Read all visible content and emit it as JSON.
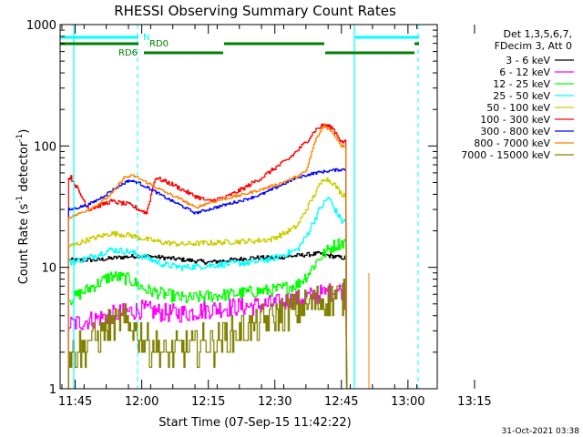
{
  "chart_data": {
    "type": "line",
    "title": "RHESSI Observing Summary Count Rates",
    "xlabel": "Start Time (07-Sep-15 11:42:22)",
    "ylabel_main": "Count Rate (s",
    "ylabel_exp1": "-1",
    "ylabel_mid": " detector",
    "ylabel_exp2": "-1",
    "ylabel_end": ")",
    "footer_date": "31-Oct-2021 03:38",
    "x_ticks": [
      "11:45",
      "12:00",
      "12:15",
      "12:30",
      "12:45",
      "13:00",
      "13:15"
    ],
    "y_ticks": [
      "1",
      "10",
      "100",
      "1000"
    ],
    "xlim_minutes": [
      -3.4,
      81.6
    ],
    "ylim": [
      1,
      1000
    ],
    "y_scale": "log",
    "legend": {
      "header_line1": "Det 1,3,5,6,7,",
      "header_line2": "FDecim 3, Att 0",
      "placement": "right"
    },
    "series": [
      {
        "name": "3 - 6 keV",
        "color": "#000000",
        "points": [
          [
            5,
            11.5
          ],
          [
            9,
            12
          ],
          [
            15,
            12.5
          ],
          [
            20,
            12
          ],
          [
            25,
            11.5
          ],
          [
            30,
            11
          ],
          [
            35,
            11.5
          ],
          [
            40,
            12
          ],
          [
            45,
            12
          ],
          [
            50,
            12.5
          ],
          [
            55,
            13
          ],
          [
            57,
            12.5
          ],
          [
            60,
            12
          ]
        ]
      },
      {
        "name": "6 - 12 keV",
        "color": "#ff00ff",
        "points": [
          [
            -1,
            3.4
          ],
          [
            5,
            3.8
          ],
          [
            10,
            4.2
          ],
          [
            15,
            4.5
          ],
          [
            20,
            4.2
          ],
          [
            25,
            4.2
          ],
          [
            30,
            4.5
          ],
          [
            35,
            4.7
          ],
          [
            40,
            4.8
          ],
          [
            45,
            5
          ],
          [
            50,
            5.5
          ],
          [
            55,
            6
          ],
          [
            60,
            6.5
          ]
        ]
      },
      {
        "name": "12 - 25 keV",
        "color": "#00ff00",
        "points": [
          [
            -1,
            5.5
          ],
          [
            4,
            7
          ],
          [
            8,
            8.5
          ],
          [
            12,
            8
          ],
          [
            16,
            6.5
          ],
          [
            20,
            6
          ],
          [
            25,
            5.5
          ],
          [
            30,
            5.8
          ],
          [
            35,
            6
          ],
          [
            40,
            6.3
          ],
          [
            45,
            6.5
          ],
          [
            50,
            7.2
          ],
          [
            52,
            8.5
          ],
          [
            55,
            12
          ],
          [
            58,
            15
          ],
          [
            60,
            16
          ]
        ]
      },
      {
        "name": "25 - 50 keV",
        "color": "#00ffff",
        "points": [
          [
            -1,
            11
          ],
          [
            3,
            12
          ],
          [
            8,
            14
          ],
          [
            12,
            13.5
          ],
          [
            16,
            12
          ],
          [
            20,
            10.5
          ],
          [
            24,
            10
          ],
          [
            28,
            10.2
          ],
          [
            32,
            10.5
          ],
          [
            36,
            10.8
          ],
          [
            40,
            11
          ],
          [
            45,
            12
          ],
          [
            50,
            14
          ],
          [
            52,
            18
          ],
          [
            55,
            30
          ],
          [
            57,
            38
          ],
          [
            58,
            32
          ],
          [
            60,
            24
          ]
        ]
      },
      {
        "name": "50 - 100 keV",
        "color": "#cccc00",
        "points": [
          [
            -1,
            15
          ],
          [
            3,
            17
          ],
          [
            8,
            19
          ],
          [
            12,
            18.5
          ],
          [
            16,
            17
          ],
          [
            20,
            16
          ],
          [
            24,
            15.5
          ],
          [
            28,
            15.8
          ],
          [
            32,
            16
          ],
          [
            36,
            16.3
          ],
          [
            40,
            16.5
          ],
          [
            44,
            17
          ],
          [
            47,
            19
          ],
          [
            50,
            22
          ],
          [
            53,
            35
          ],
          [
            56,
            55
          ],
          [
            58,
            50
          ],
          [
            60,
            40
          ]
        ]
      },
      {
        "name": "100 - 300 keV",
        "color": "#ff0000",
        "points": [
          [
            -1,
            55
          ],
          [
            3,
            30
          ],
          [
            8,
            35
          ],
          [
            12,
            33
          ],
          [
            16,
            28
          ],
          [
            18,
            55
          ],
          [
            22,
            48
          ],
          [
            26,
            40
          ],
          [
            30,
            35
          ],
          [
            34,
            38
          ],
          [
            38,
            45
          ],
          [
            42,
            55
          ],
          [
            45,
            66
          ],
          [
            48,
            78
          ],
          [
            52,
            108
          ],
          [
            54,
            135
          ],
          [
            56,
            150
          ],
          [
            58,
            140
          ],
          [
            60,
            108
          ]
        ]
      },
      {
        "name": "300 - 800 keV",
        "color": "#0000ff",
        "points": [
          [
            -1,
            30
          ],
          [
            3,
            33
          ],
          [
            5,
            36
          ],
          [
            9,
            45
          ],
          [
            12,
            52
          ],
          [
            14,
            50
          ],
          [
            17,
            44
          ],
          [
            20,
            38
          ],
          [
            24,
            32
          ],
          [
            27,
            28
          ],
          [
            30,
            30
          ],
          [
            34,
            33
          ],
          [
            38,
            36
          ],
          [
            42,
            40
          ],
          [
            46,
            47
          ],
          [
            50,
            55
          ],
          [
            54,
            60
          ],
          [
            58,
            63
          ],
          [
            60,
            64
          ]
        ]
      },
      {
        "name": "800 - 7000 keV",
        "color": "#ff8000",
        "points": [
          [
            -1,
            26
          ],
          [
            3,
            30
          ],
          [
            5,
            33
          ],
          [
            8,
            40
          ],
          [
            11,
            55
          ],
          [
            13,
            57
          ],
          [
            16,
            50
          ],
          [
            20,
            42
          ],
          [
            24,
            36
          ],
          [
            27,
            31
          ],
          [
            30,
            34
          ],
          [
            34,
            37
          ],
          [
            38,
            40
          ],
          [
            42,
            44
          ],
          [
            46,
            49
          ],
          [
            50,
            56
          ],
          [
            52,
            62
          ],
          [
            54,
            110
          ],
          [
            56,
            148
          ],
          [
            58,
            128
          ],
          [
            60,
            100
          ]
        ]
      },
      {
        "name": "7000 - 15000 keV",
        "color": "#808000",
        "points": [
          [
            -1,
            2
          ],
          [
            2,
            2.3
          ],
          [
            4,
            2.6
          ],
          [
            7,
            3.1
          ],
          [
            10,
            3.5
          ],
          [
            13,
            3.3
          ],
          [
            15,
            2.7
          ],
          [
            17,
            2.3
          ],
          [
            20,
            2
          ],
          [
            24,
            2.1
          ],
          [
            28,
            2.3
          ],
          [
            32,
            2.5
          ],
          [
            36,
            2.8
          ],
          [
            40,
            3.2
          ],
          [
            44,
            3.8
          ],
          [
            48,
            4.3
          ],
          [
            52,
            4.8
          ],
          [
            56,
            5.3
          ],
          [
            58,
            5.6
          ],
          [
            60,
            5.8
          ]
        ]
      }
    ],
    "flags": [
      {
        "name": "N",
        "color": "#00ffff"
      },
      {
        "name": "RD0",
        "color": "#008000"
      },
      {
        "name": "RD6",
        "color": "#008000"
      }
    ]
  }
}
